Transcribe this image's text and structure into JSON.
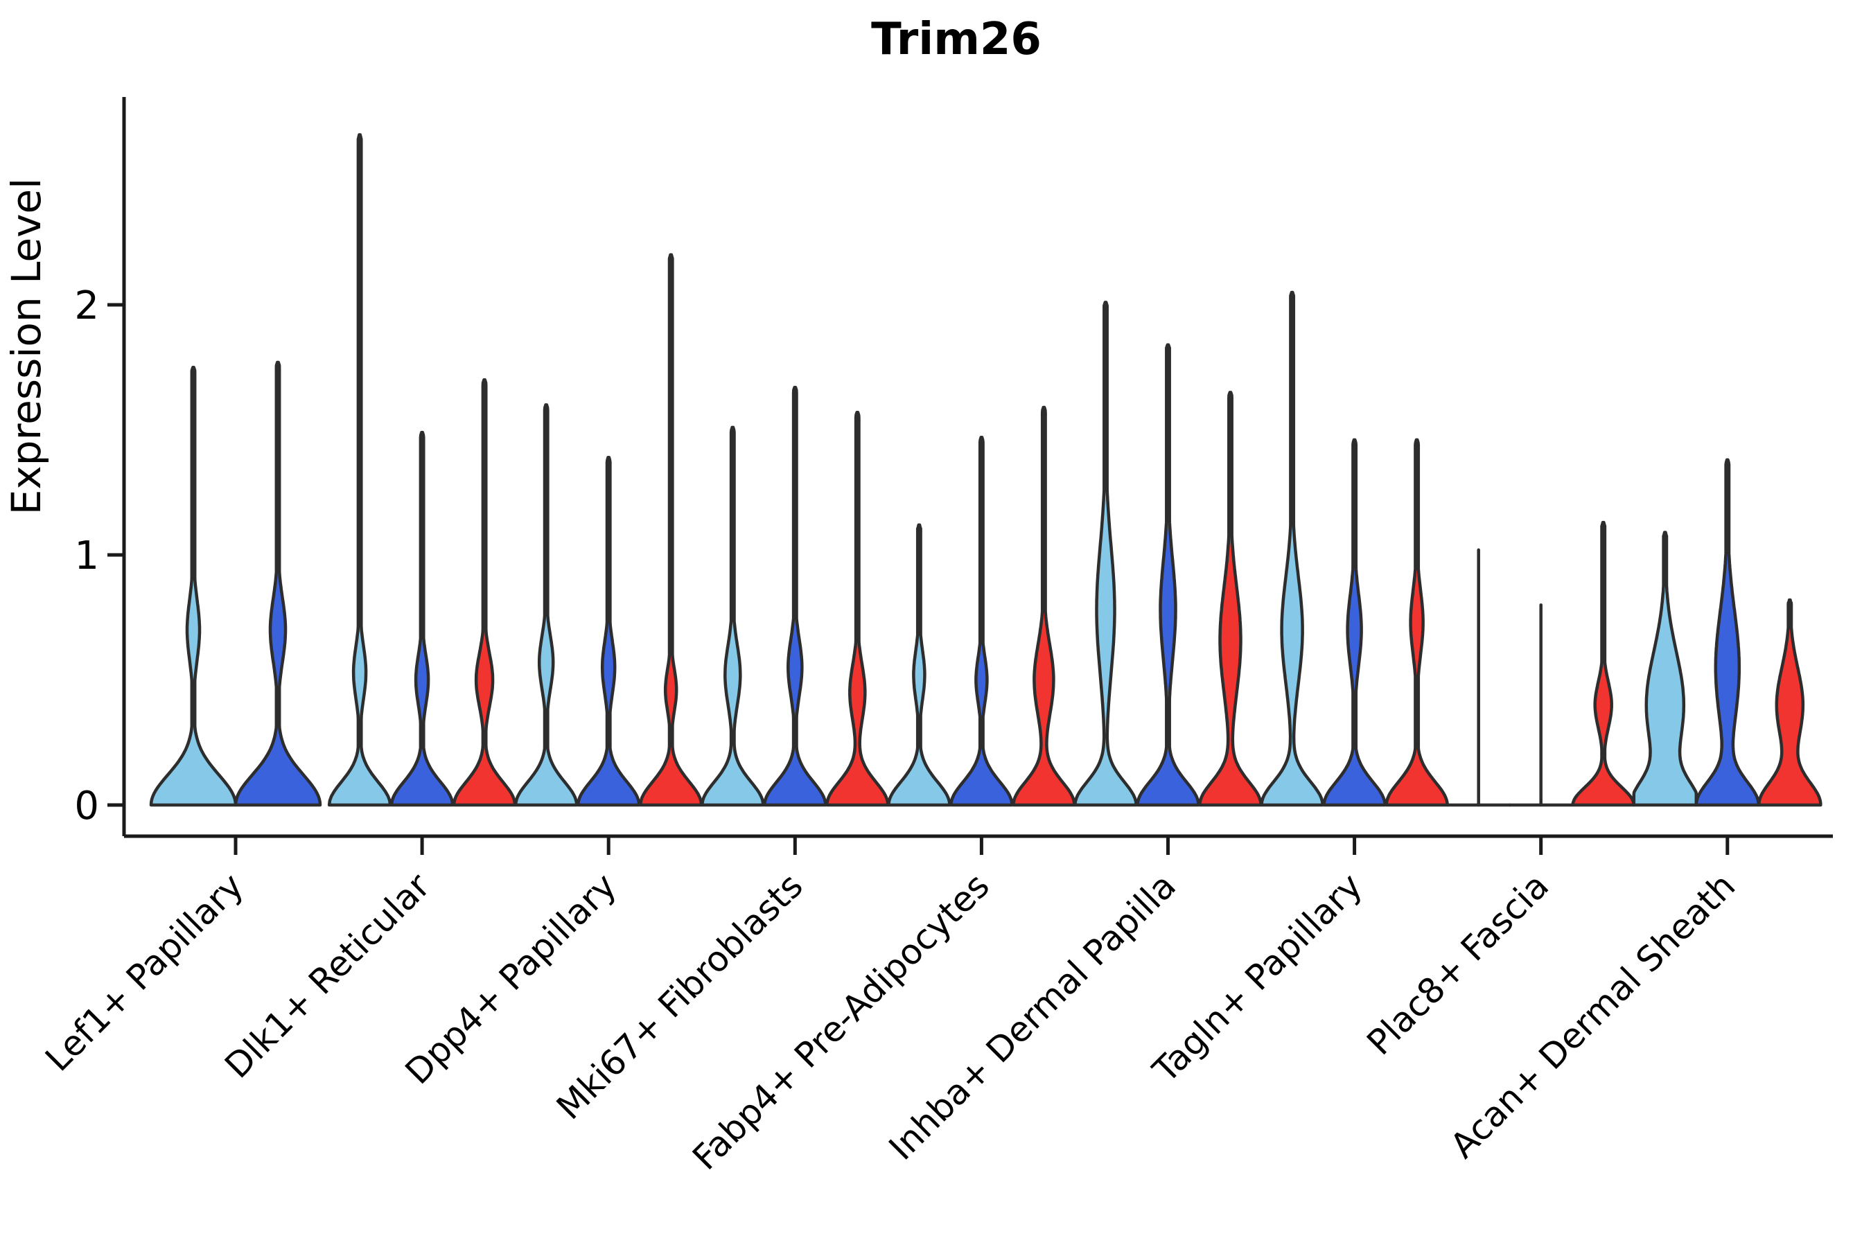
{
  "chart_data": {
    "type": "violin",
    "title": "Trim26",
    "ylabel": "Expression Level",
    "ytick_labels": [
      "0",
      "1",
      "2"
    ],
    "ytick_values": [
      0,
      1,
      2
    ],
    "ylim": [
      -0.12,
      2.83
    ],
    "grid": false,
    "legend": "none",
    "categories": [
      "Lef1+ Papillary",
      "Dlk1+ Reticular",
      "Dpp4+ Papillary",
      "Mki67+ Fibroblasts",
      "Fabp4+ Pre-Adipocytes",
      "Inhba+ Dermal Papilla",
      "Tagln+ Papillary",
      "Plac8+ Fascia",
      "Acan+ Dermal Sheath"
    ],
    "splits": [
      "light-blue",
      "dark-blue",
      "red"
    ],
    "split_colors": {
      "light-blue": "#85C8E8",
      "dark-blue": "#3B62DD",
      "red": "#F23430"
    },
    "outline_color": "#2D2D2D",
    "axis_color": "#1A1A1A",
    "background_color": "#FFFFFF",
    "groups": [
      {
        "category": "Lef1+ Papillary",
        "violins": [
          {
            "split": "light-blue",
            "max": 1.75,
            "bulge_center": 0.7,
            "bulge_sigma": 0.17,
            "bulge_halfwidth": 9,
            "base_halfwidth": 61,
            "base_sigma": 0.17,
            "offset": -61
          },
          {
            "split": "dark-blue",
            "max": 1.77,
            "bulge_center": 0.7,
            "bulge_sigma": 0.18,
            "bulge_halfwidth": 11,
            "base_halfwidth": 61,
            "base_sigma": 0.17,
            "offset": 61
          }
        ]
      },
      {
        "category": "Dlk1+ Reticular",
        "violins": [
          {
            "split": "light-blue",
            "max": 2.68,
            "bulge_center": 0.53,
            "bulge_sigma": 0.15,
            "bulge_halfwidth": 9,
            "base_halfwidth": 44,
            "base_sigma": 0.13,
            "offset": -90
          },
          {
            "split": "dark-blue",
            "max": 1.49,
            "bulge_center": 0.5,
            "bulge_sigma": 0.14,
            "bulge_halfwidth": 9,
            "base_halfwidth": 44,
            "base_sigma": 0.13,
            "offset": 0
          },
          {
            "split": "red",
            "max": 1.7,
            "bulge_center": 0.5,
            "bulge_sigma": 0.15,
            "bulge_halfwidth": 12,
            "base_halfwidth": 44,
            "base_sigma": 0.13,
            "offset": 90
          }
        ]
      },
      {
        "category": "Dpp4+ Papillary",
        "violins": [
          {
            "split": "light-blue",
            "max": 1.6,
            "bulge_center": 0.57,
            "bulge_sigma": 0.15,
            "bulge_halfwidth": 10,
            "base_halfwidth": 44,
            "base_sigma": 0.13,
            "offset": -90
          },
          {
            "split": "dark-blue",
            "max": 1.39,
            "bulge_center": 0.55,
            "bulge_sigma": 0.15,
            "bulge_halfwidth": 9,
            "base_halfwidth": 44,
            "base_sigma": 0.13,
            "offset": 0
          },
          {
            "split": "red",
            "max": 2.2,
            "bulge_center": 0.46,
            "bulge_sigma": 0.12,
            "bulge_halfwidth": 8,
            "base_halfwidth": 44,
            "base_sigma": 0.13,
            "offset": 90
          }
        ]
      },
      {
        "category": "Mki67+ Fibroblasts",
        "violins": [
          {
            "split": "light-blue",
            "max": 1.51,
            "bulge_center": 0.52,
            "bulge_sigma": 0.17,
            "bulge_halfwidth": 11,
            "base_halfwidth": 44,
            "base_sigma": 0.13,
            "offset": -90
          },
          {
            "split": "dark-blue",
            "max": 1.67,
            "bulge_center": 0.55,
            "bulge_sigma": 0.16,
            "bulge_halfwidth": 10,
            "base_halfwidth": 44,
            "base_sigma": 0.13,
            "offset": 0
          },
          {
            "split": "red",
            "max": 1.57,
            "bulge_center": 0.45,
            "bulge_sigma": 0.16,
            "bulge_halfwidth": 11,
            "base_halfwidth": 44,
            "base_sigma": 0.13,
            "offset": 90
          }
        ]
      },
      {
        "category": "Fabp4+ Pre-Adipocytes",
        "violins": [
          {
            "split": "light-blue",
            "max": 1.12,
            "bulge_center": 0.52,
            "bulge_sigma": 0.14,
            "bulge_halfwidth": 8,
            "base_halfwidth": 44,
            "base_sigma": 0.13,
            "offset": -90
          },
          {
            "split": "dark-blue",
            "max": 1.47,
            "bulge_center": 0.5,
            "bulge_sigma": 0.13,
            "bulge_halfwidth": 8,
            "base_halfwidth": 44,
            "base_sigma": 0.13,
            "offset": 0
          },
          {
            "split": "red",
            "max": 1.59,
            "bulge_center": 0.5,
            "bulge_sigma": 0.2,
            "bulge_halfwidth": 14,
            "base_halfwidth": 44,
            "base_sigma": 0.13,
            "offset": 90
          }
        ]
      },
      {
        "category": "Inhba+ Dermal Papilla",
        "violins": [
          {
            "split": "light-blue",
            "max": 2.01,
            "bulge_center": 0.78,
            "bulge_sigma": 0.36,
            "bulge_halfwidth": 13,
            "base_halfwidth": 44,
            "base_sigma": 0.13,
            "offset": -90
          },
          {
            "split": "dark-blue",
            "max": 1.84,
            "bulge_center": 0.78,
            "bulge_sigma": 0.28,
            "bulge_halfwidth": 11,
            "base_halfwidth": 44,
            "base_sigma": 0.13,
            "offset": 0
          },
          {
            "split": "red",
            "max": 1.65,
            "bulge_center": 0.66,
            "bulge_sigma": 0.3,
            "bulge_halfwidth": 15,
            "base_halfwidth": 44,
            "base_sigma": 0.13,
            "offset": 90
          }
        ]
      },
      {
        "category": "Tagln+ Papillary",
        "violins": [
          {
            "split": "light-blue",
            "max": 2.05,
            "bulge_center": 0.7,
            "bulge_sigma": 0.3,
            "bulge_halfwidth": 15,
            "base_halfwidth": 44,
            "base_sigma": 0.13,
            "offset": -90
          },
          {
            "split": "dark-blue",
            "max": 1.46,
            "bulge_center": 0.7,
            "bulge_sigma": 0.2,
            "bulge_halfwidth": 10,
            "base_halfwidth": 44,
            "base_sigma": 0.13,
            "offset": 0
          },
          {
            "split": "red",
            "max": 1.46,
            "bulge_center": 0.73,
            "bulge_sigma": 0.18,
            "bulge_halfwidth": 9,
            "base_halfwidth": 44,
            "base_sigma": 0.13,
            "offset": 90
          }
        ]
      },
      {
        "category": "Plac8+ Fascia",
        "violins": [
          {
            "split": "light-blue",
            "max": 1.02,
            "line_only": true,
            "base_halfwidth": 45,
            "offset": -90
          },
          {
            "split": "dark-blue",
            "max": 0.8,
            "line_only": true,
            "base_halfwidth": 45,
            "offset": 0
          },
          {
            "split": "red",
            "max": 1.13,
            "bulge_center": 0.4,
            "bulge_sigma": 0.13,
            "bulge_halfwidth": 12,
            "base_halfwidth": 44,
            "base_sigma": 0.1,
            "offset": 90
          }
        ]
      },
      {
        "category": "Acan+ Dermal Sheath",
        "violins": [
          {
            "split": "light-blue",
            "max": 1.09,
            "bulge_center": 0.4,
            "bulge_sigma": 0.3,
            "bulge_halfwidth": 27,
            "base_halfwidth": 44,
            "base_sigma": 0.13,
            "offset": -90
          },
          {
            "split": "dark-blue",
            "max": 1.38,
            "bulge_center": 0.55,
            "bulge_sigma": 0.32,
            "bulge_halfwidth": 17,
            "base_halfwidth": 44,
            "base_sigma": 0.13,
            "offset": 0
          },
          {
            "split": "red",
            "max": 0.82,
            "bulge_center": 0.4,
            "bulge_sigma": 0.21,
            "bulge_halfwidth": 19,
            "base_halfwidth": 44,
            "base_sigma": 0.13,
            "offset": 90
          }
        ]
      }
    ]
  }
}
